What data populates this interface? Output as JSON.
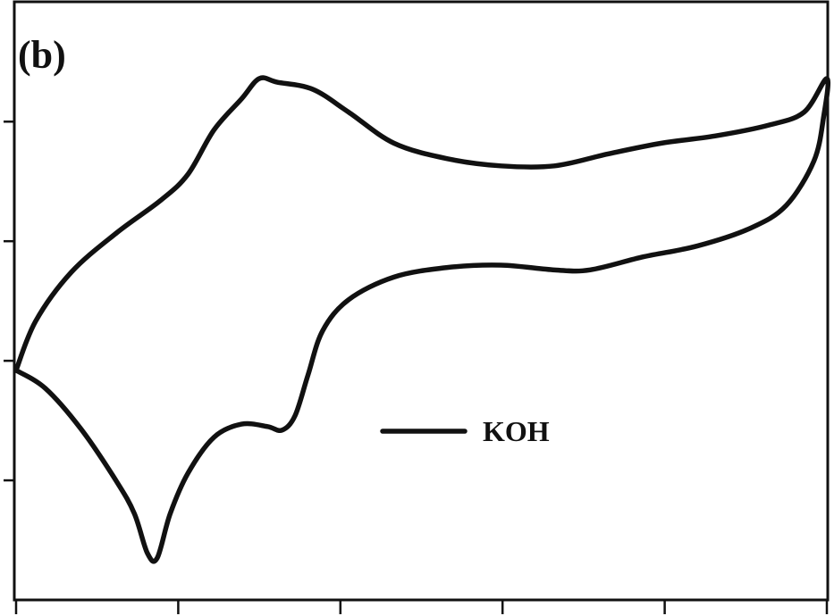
{
  "chart_data": {
    "type": "line",
    "title": "(b)",
    "xlim": [
      0,
      5
    ],
    "xticks": [
      0,
      1,
      2,
      3,
      4,
      5
    ],
    "ylim": [
      0,
      4.98
    ],
    "yticks": [
      1,
      2,
      3,
      4
    ],
    "legend": "center",
    "series": [
      {
        "name": "KOH",
        "color": "#111111",
        "x": [
          0,
          0.12,
          0.34,
          0.62,
          0.89,
          1.06,
          1.22,
          1.39,
          1.5,
          1.61,
          1.83,
          2.05,
          2.33,
          2.66,
          2.99,
          3.32,
          3.65,
          3.98,
          4.31,
          4.64,
          4.86,
          5.0,
          4.98,
          4.92,
          4.75,
          4.53,
          4.2,
          3.87,
          3.54,
          3.32,
          2.99,
          2.66,
          2.33,
          2.05,
          1.89,
          1.8,
          1.72,
          1.64,
          1.55,
          1.39,
          1.22,
          1.06,
          0.95,
          0.87,
          0.81,
          0.73,
          0.62,
          0.4,
          0.18,
          0
        ],
        "values": [
          1.92,
          2.33,
          2.74,
          3.07,
          3.34,
          3.56,
          3.93,
          4.19,
          4.36,
          4.33,
          4.27,
          4.08,
          3.82,
          3.69,
          3.63,
          3.63,
          3.73,
          3.82,
          3.88,
          3.97,
          4.08,
          4.36,
          4.04,
          3.67,
          3.3,
          3.11,
          2.96,
          2.87,
          2.76,
          2.76,
          2.8,
          2.78,
          2.7,
          2.51,
          2.25,
          1.88,
          1.54,
          1.42,
          1.45,
          1.47,
          1.36,
          1.06,
          0.72,
          0.35,
          0.39,
          0.72,
          0.99,
          1.43,
          1.77,
          1.92
        ]
      }
    ]
  }
}
